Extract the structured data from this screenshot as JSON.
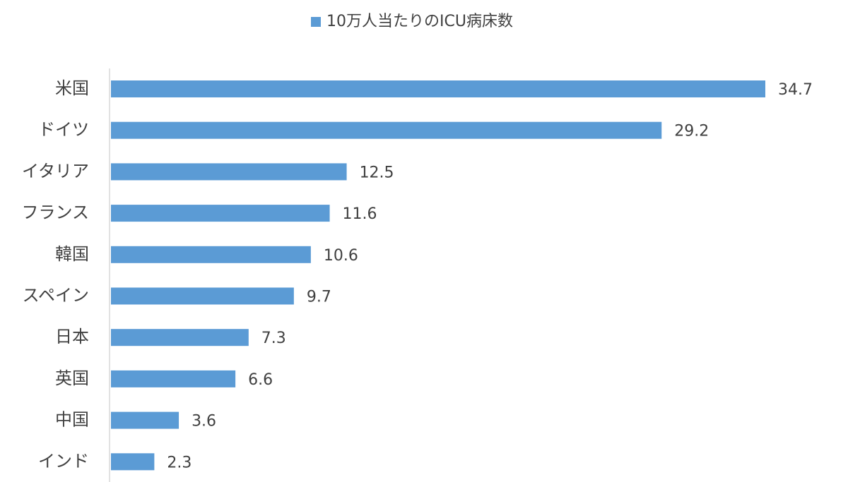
{
  "chart_data": {
    "type": "bar",
    "orientation": "horizontal",
    "categories": [
      "米国",
      "ドイツ",
      "イタリア",
      "フランス",
      "韓国",
      "スペイン",
      "日本",
      "英国",
      "中国",
      "インド"
    ],
    "series": [
      {
        "name": "10万人当たりのICU病床数",
        "color": "#5b9bd5",
        "values": [
          34.7,
          29.2,
          12.5,
          11.6,
          10.6,
          9.7,
          7.3,
          6.6,
          3.6,
          2.3
        ]
      }
    ],
    "legend": "top"
  }
}
